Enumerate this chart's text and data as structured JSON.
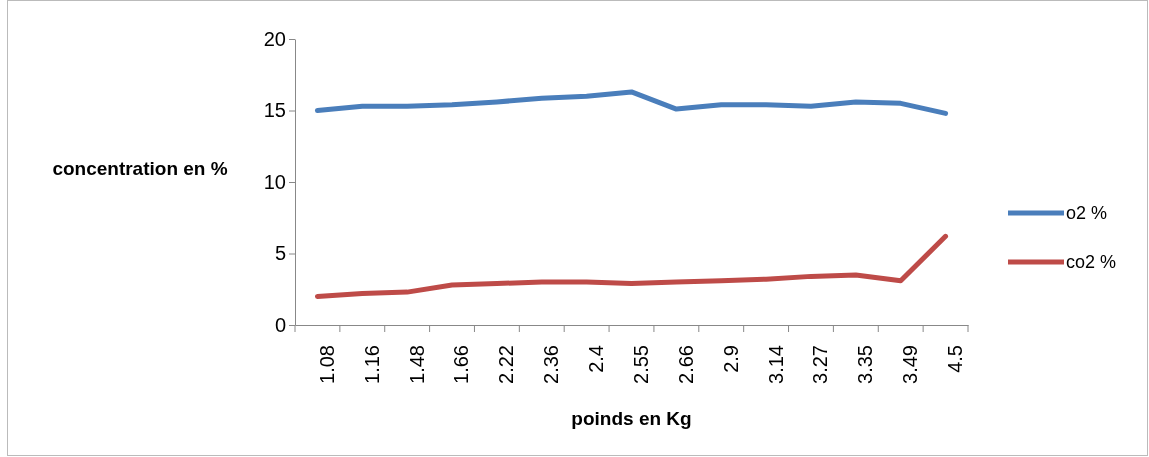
{
  "chart_data": {
    "type": "line",
    "xlabel": "poinds en Kg",
    "ylabel": "concentration en %",
    "categories": [
      "1.08",
      "1.16",
      "1.48",
      "1.66",
      "2.22",
      "2.36",
      "2.4",
      "2.55",
      "2.66",
      "2.9",
      "3.14",
      "3.27",
      "3.35",
      "3.49",
      "4.5"
    ],
    "series": [
      {
        "name": "o2 %",
        "color": "#4a7ebb",
        "values": [
          15,
          15.3,
          15.3,
          15.4,
          15.6,
          15.85,
          16,
          16.3,
          15.1,
          15.4,
          15.4,
          15.3,
          15.6,
          15.5,
          14.8
        ]
      },
      {
        "name": "co2 %",
        "color": "#be4b48",
        "values": [
          2,
          2.2,
          2.3,
          2.8,
          2.9,
          3,
          3,
          2.9,
          3,
          3.1,
          3.2,
          3.4,
          3.5,
          3.1,
          6.2
        ]
      }
    ],
    "ylim": [
      0,
      20
    ],
    "yticks": [
      0,
      5,
      10,
      15,
      20
    ],
    "grid": false,
    "legend": "right",
    "marker": "none",
    "line_style": "solid"
  }
}
